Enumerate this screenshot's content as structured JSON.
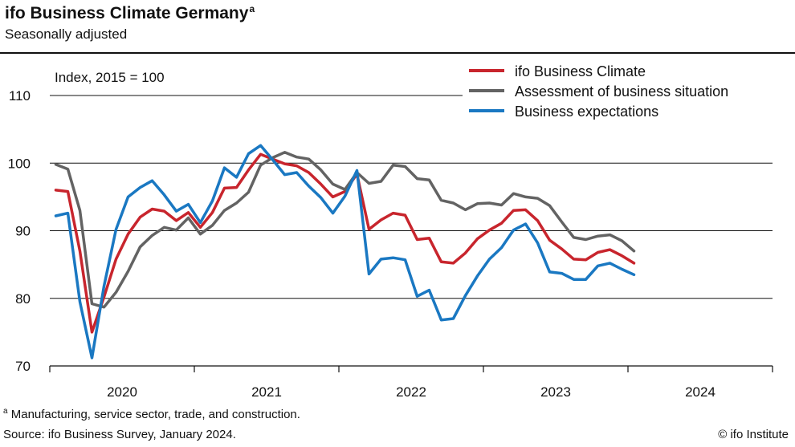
{
  "header": {
    "title": "ifo Business Climate Germany",
    "title_marker": "a",
    "subtitle": "Seasonally adjusted"
  },
  "footer": {
    "footnote_marker": "a",
    "footnote": "Manufacturing, service sector, trade, and construction.",
    "source": "Source: ifo Business Survey, January 2024.",
    "credit": "© ifo Institute"
  },
  "chart_data": {
    "type": "line",
    "ylabel": "Index, 2015 = 100",
    "ylim": [
      70,
      110
    ],
    "yticks": [
      70,
      80,
      90,
      100,
      110
    ],
    "x_axis": {
      "start": "2020-01",
      "end": "2024-12",
      "year_labels": [
        "2020",
        "2021",
        "2022",
        "2023",
        "2024"
      ]
    },
    "grid": "horizontal",
    "legend_position": "top-right",
    "months": [
      "2020-01",
      "2020-02",
      "2020-03",
      "2020-04",
      "2020-05",
      "2020-06",
      "2020-07",
      "2020-08",
      "2020-09",
      "2020-10",
      "2020-11",
      "2020-12",
      "2021-01",
      "2021-02",
      "2021-03",
      "2021-04",
      "2021-05",
      "2021-06",
      "2021-07",
      "2021-08",
      "2021-09",
      "2021-10",
      "2021-11",
      "2021-12",
      "2022-01",
      "2022-02",
      "2022-03",
      "2022-04",
      "2022-05",
      "2022-06",
      "2022-07",
      "2022-08",
      "2022-09",
      "2022-10",
      "2022-11",
      "2022-12",
      "2023-01",
      "2023-02",
      "2023-03",
      "2023-04",
      "2023-05",
      "2023-06",
      "2023-07",
      "2023-08",
      "2023-09",
      "2023-10",
      "2023-11",
      "2023-12",
      "2024-01"
    ],
    "series": [
      {
        "name": "ifo Business Climate",
        "color": "#c8252d",
        "values": [
          96.0,
          95.8,
          87.0,
          75.0,
          80.2,
          85.8,
          89.5,
          92.0,
          93.2,
          92.9,
          91.5,
          92.7,
          90.5,
          92.7,
          96.3,
          96.4,
          99.0,
          101.3,
          100.6,
          99.9,
          99.6,
          98.6,
          96.9,
          95.0,
          95.8,
          98.4,
          90.2,
          91.6,
          92.6,
          92.3,
          88.7,
          88.9,
          85.4,
          85.2,
          86.7,
          88.8,
          90.1,
          91.1,
          93.0,
          93.1,
          91.5,
          88.6,
          87.3,
          85.8,
          85.7,
          86.8,
          87.2,
          86.3,
          85.2
        ]
      },
      {
        "name": "Assessment of business situation",
        "color": "#636363",
        "values": [
          99.8,
          99.1,
          93.0,
          79.2,
          78.7,
          80.9,
          84.0,
          87.6,
          89.3,
          90.5,
          90.1,
          91.9,
          89.5,
          90.8,
          93.0,
          94.1,
          95.7,
          99.7,
          100.8,
          101.6,
          100.9,
          100.6,
          99.0,
          96.9,
          96.1,
          98.6,
          97.0,
          97.3,
          99.7,
          99.5,
          97.7,
          97.5,
          94.5,
          94.1,
          93.1,
          94.0,
          94.1,
          93.8,
          95.5,
          95.0,
          94.8,
          93.7,
          91.3,
          89.0,
          88.7,
          89.2,
          89.4,
          88.5,
          87.0
        ]
      },
      {
        "name": "Business expectations",
        "color": "#1a78c2",
        "values": [
          92.2,
          92.6,
          79.5,
          71.2,
          81.8,
          90.2,
          95.0,
          96.4,
          97.4,
          95.3,
          92.9,
          93.9,
          91.2,
          94.4,
          99.3,
          97.9,
          101.4,
          102.6,
          100.5,
          98.3,
          98.6,
          96.6,
          94.9,
          92.6,
          95.1,
          98.9,
          83.6,
          85.8,
          86.0,
          85.7,
          80.3,
          81.2,
          76.8,
          77.0,
          80.4,
          83.3,
          85.8,
          87.5,
          90.1,
          91.0,
          88.2,
          83.9,
          83.7,
          82.8,
          82.8,
          84.8,
          85.2,
          84.3,
          83.5
        ]
      }
    ]
  }
}
